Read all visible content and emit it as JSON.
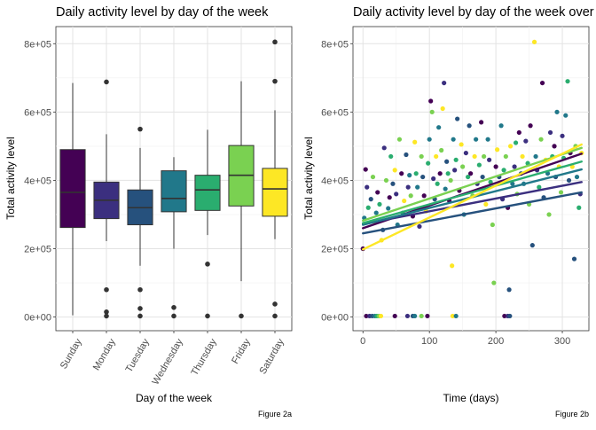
{
  "charts": [
    {
      "id": "a",
      "type": "boxplot",
      "title": "Daily activity level by day of the week",
      "xlabel": "Day of the week",
      "ylabel": "Total activity level",
      "caption": "Figure 2a",
      "ylim": [
        -40000,
        850000
      ],
      "yticks": [
        0,
        200000,
        400000,
        600000,
        800000
      ],
      "ytick_labels": [
        "0e+00",
        "2e+05",
        "4e+05",
        "6e+05",
        "8e+05"
      ],
      "grid": true,
      "categories": [
        "Sunday",
        "Monday",
        "Tuesday",
        "Wednesday",
        "Thursday",
        "Friday",
        "Saturday"
      ],
      "colors": [
        "#440154",
        "#3b2f7f",
        "#26517d",
        "#21788a",
        "#2aad6f",
        "#7ad151",
        "#fde725"
      ],
      "boxes": [
        {
          "lower_whisker": 5000,
          "q1": 262000,
          "median": 365000,
          "q3": 490000,
          "upper_whisker": 685000,
          "outliers": []
        },
        {
          "lower_whisker": 222000,
          "q1": 288000,
          "median": 342000,
          "q3": 395000,
          "upper_whisker": 535000,
          "outliers": [
            688000,
            80000,
            15000,
            3000
          ]
        },
        {
          "lower_whisker": 150000,
          "q1": 270000,
          "median": 320000,
          "q3": 372000,
          "upper_whisker": 495000,
          "outliers": [
            550000,
            80000,
            25000,
            3000
          ]
        },
        {
          "lower_whisker": 200000,
          "q1": 308000,
          "median": 347000,
          "q3": 428000,
          "upper_whisker": 468000,
          "outliers": [
            28000,
            3000
          ]
        },
        {
          "lower_whisker": 240000,
          "q1": 312000,
          "median": 372000,
          "q3": 415000,
          "upper_whisker": 548000,
          "outliers": [
            155000,
            3000
          ]
        },
        {
          "lower_whisker": 105000,
          "q1": 325000,
          "median": 415000,
          "q3": 502000,
          "upper_whisker": 690000,
          "outliers": [
            3000
          ]
        },
        {
          "lower_whisker": 228000,
          "q1": 295000,
          "median": 375000,
          "q3": 435000,
          "upper_whisker": 605000,
          "outliers": [
            805000,
            690000,
            38000,
            3000
          ]
        }
      ]
    },
    {
      "id": "b",
      "type": "scatter",
      "title": "Daily activity level by day of the week over time",
      "xlabel": "Time (days)",
      "ylabel": "Total activity level",
      "caption": "Figure 2b",
      "xlim": [
        -15,
        340
      ],
      "ylim": [
        -40000,
        850000
      ],
      "xticks": [
        0,
        100,
        200,
        300
      ],
      "xtick_labels": [
        "0",
        "100",
        "200",
        "300"
      ],
      "yticks": [
        0,
        200000,
        400000,
        600000,
        800000
      ],
      "ytick_labels": [
        "0e+00",
        "2e+05",
        "4e+05",
        "6e+05",
        "8e+05"
      ],
      "grid": true,
      "colors": [
        "#440154",
        "#3b2f7f",
        "#26517d",
        "#21788a",
        "#2aad6f",
        "#7ad151",
        "#fde725"
      ],
      "trend_lines": [
        {
          "color_index": 0,
          "x": [
            0,
            329
          ],
          "y": [
            260000,
            478000
          ]
        },
        {
          "color_index": 1,
          "x": [
            0,
            329
          ],
          "y": [
            272000,
            395000
          ]
        },
        {
          "color_index": 2,
          "x": [
            0,
            329
          ],
          "y": [
            245000,
            365000
          ]
        },
        {
          "color_index": 3,
          "x": [
            0,
            329
          ],
          "y": [
            270000,
            432000
          ]
        },
        {
          "color_index": 4,
          "x": [
            0,
            329
          ],
          "y": [
            275000,
            455000
          ]
        },
        {
          "color_index": 5,
          "x": [
            0,
            329
          ],
          "y": [
            282000,
            495000
          ]
        },
        {
          "color_index": 6,
          "x": [
            0,
            329
          ],
          "y": [
            198000,
            505000
          ]
        }
      ],
      "points": [
        [
          5,
          3000,
          0
        ],
        [
          10,
          3000,
          1
        ],
        [
          14,
          3000,
          2
        ],
        [
          18,
          3000,
          3
        ],
        [
          21,
          3000,
          4
        ],
        [
          24,
          3000,
          5
        ],
        [
          27,
          3000,
          6
        ],
        [
          48,
          3000,
          0
        ],
        [
          67,
          3000,
          1
        ],
        [
          75,
          3000,
          2
        ],
        [
          78,
          3000,
          3
        ],
        [
          88,
          3000,
          5
        ],
        [
          97,
          3000,
          0
        ],
        [
          135,
          3000,
          6
        ],
        [
          140,
          3000,
          3
        ],
        [
          213,
          3000,
          0
        ],
        [
          218,
          3000,
          1
        ],
        [
          221,
          3000,
          2
        ],
        [
          0,
          200000,
          0
        ],
        [
          2,
          290000,
          3
        ],
        [
          4,
          432000,
          0
        ],
        [
          6,
          380000,
          1
        ],
        [
          8,
          320000,
          4
        ],
        [
          12,
          345000,
          2
        ],
        [
          15,
          410000,
          5
        ],
        [
          18,
          278000,
          6
        ],
        [
          20,
          305000,
          3
        ],
        [
          22,
          365000,
          0
        ],
        [
          25,
          330000,
          4
        ],
        [
          28,
          225000,
          6
        ],
        [
          30,
          255000,
          2
        ],
        [
          32,
          495000,
          1
        ],
        [
          35,
          400000,
          5
        ],
        [
          38,
          318000,
          3
        ],
        [
          40,
          350000,
          0
        ],
        [
          42,
          470000,
          4
        ],
        [
          45,
          390000,
          2
        ],
        [
          48,
          430000,
          6
        ],
        [
          50,
          360000,
          1
        ],
        [
          52,
          270000,
          3
        ],
        [
          55,
          520000,
          5
        ],
        [
          58,
          420000,
          0
        ],
        [
          60,
          305000,
          4
        ],
        [
          62,
          340000,
          6
        ],
        [
          65,
          475000,
          2
        ],
        [
          68,
          380000,
          1
        ],
        [
          70,
          415000,
          3
        ],
        [
          72,
          355000,
          5
        ],
        [
          75,
          295000,
          0
        ],
        [
          78,
          512000,
          6
        ],
        [
          80,
          420000,
          4
        ],
        [
          82,
          380000,
          3
        ],
        [
          85,
          265000,
          1
        ],
        [
          88,
          470000,
          5
        ],
        [
          90,
          410000,
          2
        ],
        [
          92,
          355000,
          0
        ],
        [
          95,
          310000,
          6
        ],
        [
          98,
          450000,
          4
        ],
        [
          100,
          520000,
          3
        ],
        [
          102,
          632000,
          0
        ],
        [
          104,
          600000,
          5
        ],
        [
          106,
          405000,
          1
        ],
        [
          108,
          345000,
          2
        ],
        [
          110,
          470000,
          6
        ],
        [
          112,
          390000,
          4
        ],
        [
          114,
          555000,
          3
        ],
        [
          116,
          420000,
          0
        ],
        [
          118,
          488000,
          5
        ],
        [
          120,
          610000,
          6
        ],
        [
          122,
          685000,
          1
        ],
        [
          124,
          375000,
          3
        ],
        [
          126,
          455000,
          2
        ],
        [
          128,
          420000,
          4
        ],
        [
          130,
          340000,
          0
        ],
        [
          132,
          400000,
          5
        ],
        [
          134,
          150000,
          6
        ],
        [
          136,
          520000,
          3
        ],
        [
          138,
          430000,
          1
        ],
        [
          140,
          460000,
          4
        ],
        [
          142,
          580000,
          2
        ],
        [
          145,
          370000,
          0
        ],
        [
          148,
          505000,
          6
        ],
        [
          150,
          440000,
          5
        ],
        [
          152,
          300000,
          3
        ],
        [
          155,
          480000,
          1
        ],
        [
          158,
          410000,
          4
        ],
        [
          160,
          560000,
          2
        ],
        [
          162,
          420000,
          0
        ],
        [
          165,
          355000,
          5
        ],
        [
          168,
          470000,
          6
        ],
        [
          170,
          520000,
          3
        ],
        [
          172,
          390000,
          1
        ],
        [
          175,
          445000,
          4
        ],
        [
          178,
          570000,
          0
        ],
        [
          180,
          410000,
          2
        ],
        [
          182,
          470000,
          5
        ],
        [
          185,
          330000,
          6
        ],
        [
          188,
          520000,
          3
        ],
        [
          190,
          460000,
          1
        ],
        [
          192,
          395000,
          4
        ],
        [
          195,
          270000,
          5
        ],
        [
          197,
          100000,
          5
        ],
        [
          200,
          440000,
          0
        ],
        [
          202,
          490000,
          6
        ],
        [
          205,
          410000,
          2
        ],
        [
          208,
          560000,
          3
        ],
        [
          210,
          345000,
          1
        ],
        [
          212,
          430000,
          4
        ],
        [
          215,
          470000,
          5
        ],
        [
          218,
          320000,
          0
        ],
        [
          220,
          80000,
          2
        ],
        [
          222,
          500000,
          6
        ],
        [
          225,
          390000,
          3
        ],
        [
          228,
          440000,
          1
        ],
        [
          230,
          510000,
          4
        ],
        [
          232,
          360000,
          5
        ],
        [
          235,
          540000,
          0
        ],
        [
          238,
          420000,
          2
        ],
        [
          240,
          470000,
          6
        ],
        [
          242,
          390000,
          3
        ],
        [
          245,
          515000,
          1
        ],
        [
          248,
          450000,
          4
        ],
        [
          250,
          330000,
          5
        ],
        [
          252,
          560000,
          0
        ],
        [
          255,
          210000,
          2
        ],
        [
          258,
          805000,
          6
        ],
        [
          260,
          470000,
          3
        ],
        [
          262,
          430000,
          1
        ],
        [
          265,
          380000,
          4
        ],
        [
          268,
          520000,
          5
        ],
        [
          270,
          685000,
          0
        ],
        [
          272,
          350000,
          2
        ],
        [
          275,
          460000,
          6
        ],
        [
          278,
          420000,
          3
        ],
        [
          280,
          300000,
          5
        ],
        [
          282,
          540000,
          1
        ],
        [
          285,
          470000,
          4
        ],
        [
          288,
          500000,
          0
        ],
        [
          290,
          410000,
          2
        ],
        [
          292,
          600000,
          3
        ],
        [
          295,
          440000,
          6
        ],
        [
          298,
          365000,
          5
        ],
        [
          300,
          530000,
          1
        ],
        [
          302,
          465000,
          4
        ],
        [
          305,
          590000,
          3
        ],
        [
          308,
          690000,
          4
        ],
        [
          310,
          400000,
          2
        ],
        [
          312,
          480000,
          0
        ],
        [
          315,
          440000,
          6
        ],
        [
          318,
          170000,
          2
        ],
        [
          320,
          500000,
          5
        ],
        [
          322,
          410000,
          3
        ],
        [
          325,
          320000,
          4
        ],
        [
          327,
          360000,
          1
        ],
        [
          329,
          480000,
          6
        ]
      ]
    }
  ]
}
